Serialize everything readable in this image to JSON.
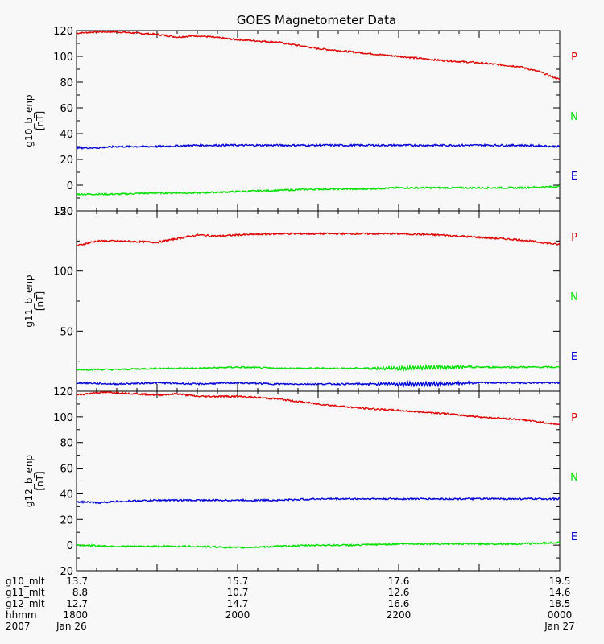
{
  "chart_data": {
    "type": "line",
    "title": "GOES Magnetometer Data",
    "x_range_hours": [
      18.0,
      24.0
    ],
    "series_colors": {
      "P": "#e00000",
      "N": "#00e000",
      "E": "#0000d8"
    },
    "panels": [
      {
        "ylabel": "g10_b_enp",
        "yunit": "[nT]",
        "ylim": [
          -20,
          120
        ],
        "yticks": [
          "-20",
          "0",
          "20",
          "40",
          "60",
          "80",
          "100",
          "120"
        ],
        "ytick_values": [
          -20,
          0,
          20,
          40,
          60,
          80,
          100,
          120
        ],
        "legend": [
          "P",
          "N",
          "E"
        ],
        "series": [
          {
            "key": "P",
            "x": [
              18.0,
              18.25,
              18.5,
              19.0,
              19.25,
              19.5,
              20.0,
              20.5,
              21.0,
              21.5,
              22.0,
              22.5,
              23.0,
              23.5,
              23.75,
              24.0
            ],
            "values": [
              118,
              119,
              119,
              117,
              115,
              116,
              113,
              111,
              106,
              103,
              100,
              97,
              95,
              92,
              88,
              82
            ],
            "noise": 0.8,
            "wave": 0
          },
          {
            "key": "N",
            "x": [
              18.0,
              18.5,
              19.0,
              19.5,
              20.0,
              20.5,
              21.0,
              21.5,
              22.0,
              22.5,
              23.0,
              23.5,
              24.0
            ],
            "values": [
              -7,
              -7,
              -6,
              -6,
              -5,
              -4,
              -3,
              -3,
              -2,
              -2,
              -2,
              -2,
              -1
            ],
            "noise": 0.8,
            "wave": 0
          },
          {
            "key": "E",
            "x": [
              18.0,
              18.25,
              18.5,
              19.0,
              19.5,
              20.0,
              20.5,
              21.0,
              21.5,
              22.0,
              22.5,
              23.0,
              23.5,
              24.0
            ],
            "values": [
              29,
              29,
              30,
              30,
              31,
              31,
              31,
              31,
              31,
              31,
              31,
              31,
              31,
              30
            ],
            "noise": 0.9,
            "wave": 0
          }
        ]
      },
      {
        "ylabel": "g11_b_enp",
        "yunit": "[nT]",
        "ylim": [
          0,
          150
        ],
        "yticks": [
          "0",
          "50",
          "100",
          "150"
        ],
        "ytick_values": [
          0,
          50,
          100,
          150
        ],
        "legend": [
          "P",
          "N",
          "E"
        ],
        "series": [
          {
            "key": "P",
            "x": [
              18.0,
              18.25,
              18.5,
              19.0,
              19.25,
              19.5,
              19.75,
              20.0,
              20.5,
              21.0,
              21.5,
              22.0,
              22.5,
              23.0,
              23.5,
              23.75,
              24.0
            ],
            "values": [
              121,
              125,
              125,
              124,
              127,
              130,
              129,
              130,
              131,
              131,
              131,
              131,
              130,
              128,
              126,
              124,
              122
            ],
            "noise": 0.9,
            "wave": 0
          },
          {
            "key": "N",
            "x": [
              18.0,
              18.5,
              19.0,
              19.5,
              20.0,
              20.5,
              21.0,
              21.5,
              22.0,
              22.5,
              23.0,
              23.5,
              24.0
            ],
            "values": [
              18,
              18,
              19,
              19,
              20,
              19,
              19,
              19,
              19,
              20,
              20,
              20,
              20
            ],
            "noise": 0.8,
            "wave": 1.8
          },
          {
            "key": "E",
            "x": [
              18.0,
              18.5,
              19.0,
              19.5,
              20.0,
              20.5,
              21.0,
              21.5,
              22.0,
              22.5,
              23.0,
              23.5,
              24.0
            ],
            "values": [
              7,
              6,
              7,
              6,
              7,
              6,
              6,
              6,
              6,
              6,
              7,
              7,
              7
            ],
            "noise": 0.8,
            "wave": 1.8
          }
        ]
      },
      {
        "ylabel": "g12_b_enp",
        "yunit": "[nT]",
        "ylim": [
          -20,
          120
        ],
        "yticks": [
          "-20",
          "0",
          "20",
          "40",
          "60",
          "80",
          "100",
          "120"
        ],
        "ytick_values": [
          -20,
          0,
          20,
          40,
          60,
          80,
          100,
          120
        ],
        "legend": [
          "P",
          "N",
          "E"
        ],
        "series": [
          {
            "key": "P",
            "x": [
              18.0,
              18.25,
              18.5,
              19.0,
              19.25,
              19.5,
              20.0,
              20.5,
              21.0,
              21.5,
              22.0,
              22.5,
              23.0,
              23.5,
              24.0
            ],
            "values": [
              117,
              119,
              119,
              117,
              118,
              116,
              116,
              114,
              110,
              107,
              105,
              103,
              100,
              98,
              94
            ],
            "noise": 0.8,
            "wave": 0
          },
          {
            "key": "N",
            "x": [
              18.0,
              18.5,
              19.0,
              19.5,
              20.0,
              20.5,
              21.0,
              21.5,
              22.0,
              22.5,
              23.0,
              23.5,
              24.0
            ],
            "values": [
              0,
              -1,
              -1,
              -1,
              -2,
              -1,
              0,
              0,
              1,
              1,
              1,
              1,
              2
            ],
            "noise": 0.8,
            "wave": 0
          },
          {
            "key": "E",
            "x": [
              18.0,
              18.25,
              18.5,
              19.0,
              19.5,
              20.0,
              20.5,
              21.0,
              21.5,
              22.0,
              22.5,
              23.0,
              23.5,
              24.0
            ],
            "values": [
              34,
              33,
              34,
              35,
              35,
              35,
              35,
              36,
              36,
              36,
              36,
              36,
              36,
              36
            ],
            "noise": 0.8,
            "wave": 0
          }
        ]
      }
    ],
    "footer": {
      "row_labels": [
        "g10_mlt",
        "g11_mlt",
        "g12_mlt",
        "hhmm",
        "2007"
      ],
      "columns": [
        {
          "x": 18.0,
          "values": [
            "13.7",
            "8.8",
            "12.7",
            "1800",
            "Jan 26"
          ]
        },
        {
          "x": 20.0,
          "values": [
            "15.7",
            "10.7",
            "14.7",
            "2000",
            ""
          ]
        },
        {
          "x": 22.0,
          "values": [
            "17.6",
            "12.6",
            "16.6",
            "2200",
            ""
          ]
        },
        {
          "x": 24.0,
          "values": [
            "19.5",
            "14.6",
            "18.5",
            "0000",
            "Jan 27"
          ]
        }
      ]
    }
  }
}
